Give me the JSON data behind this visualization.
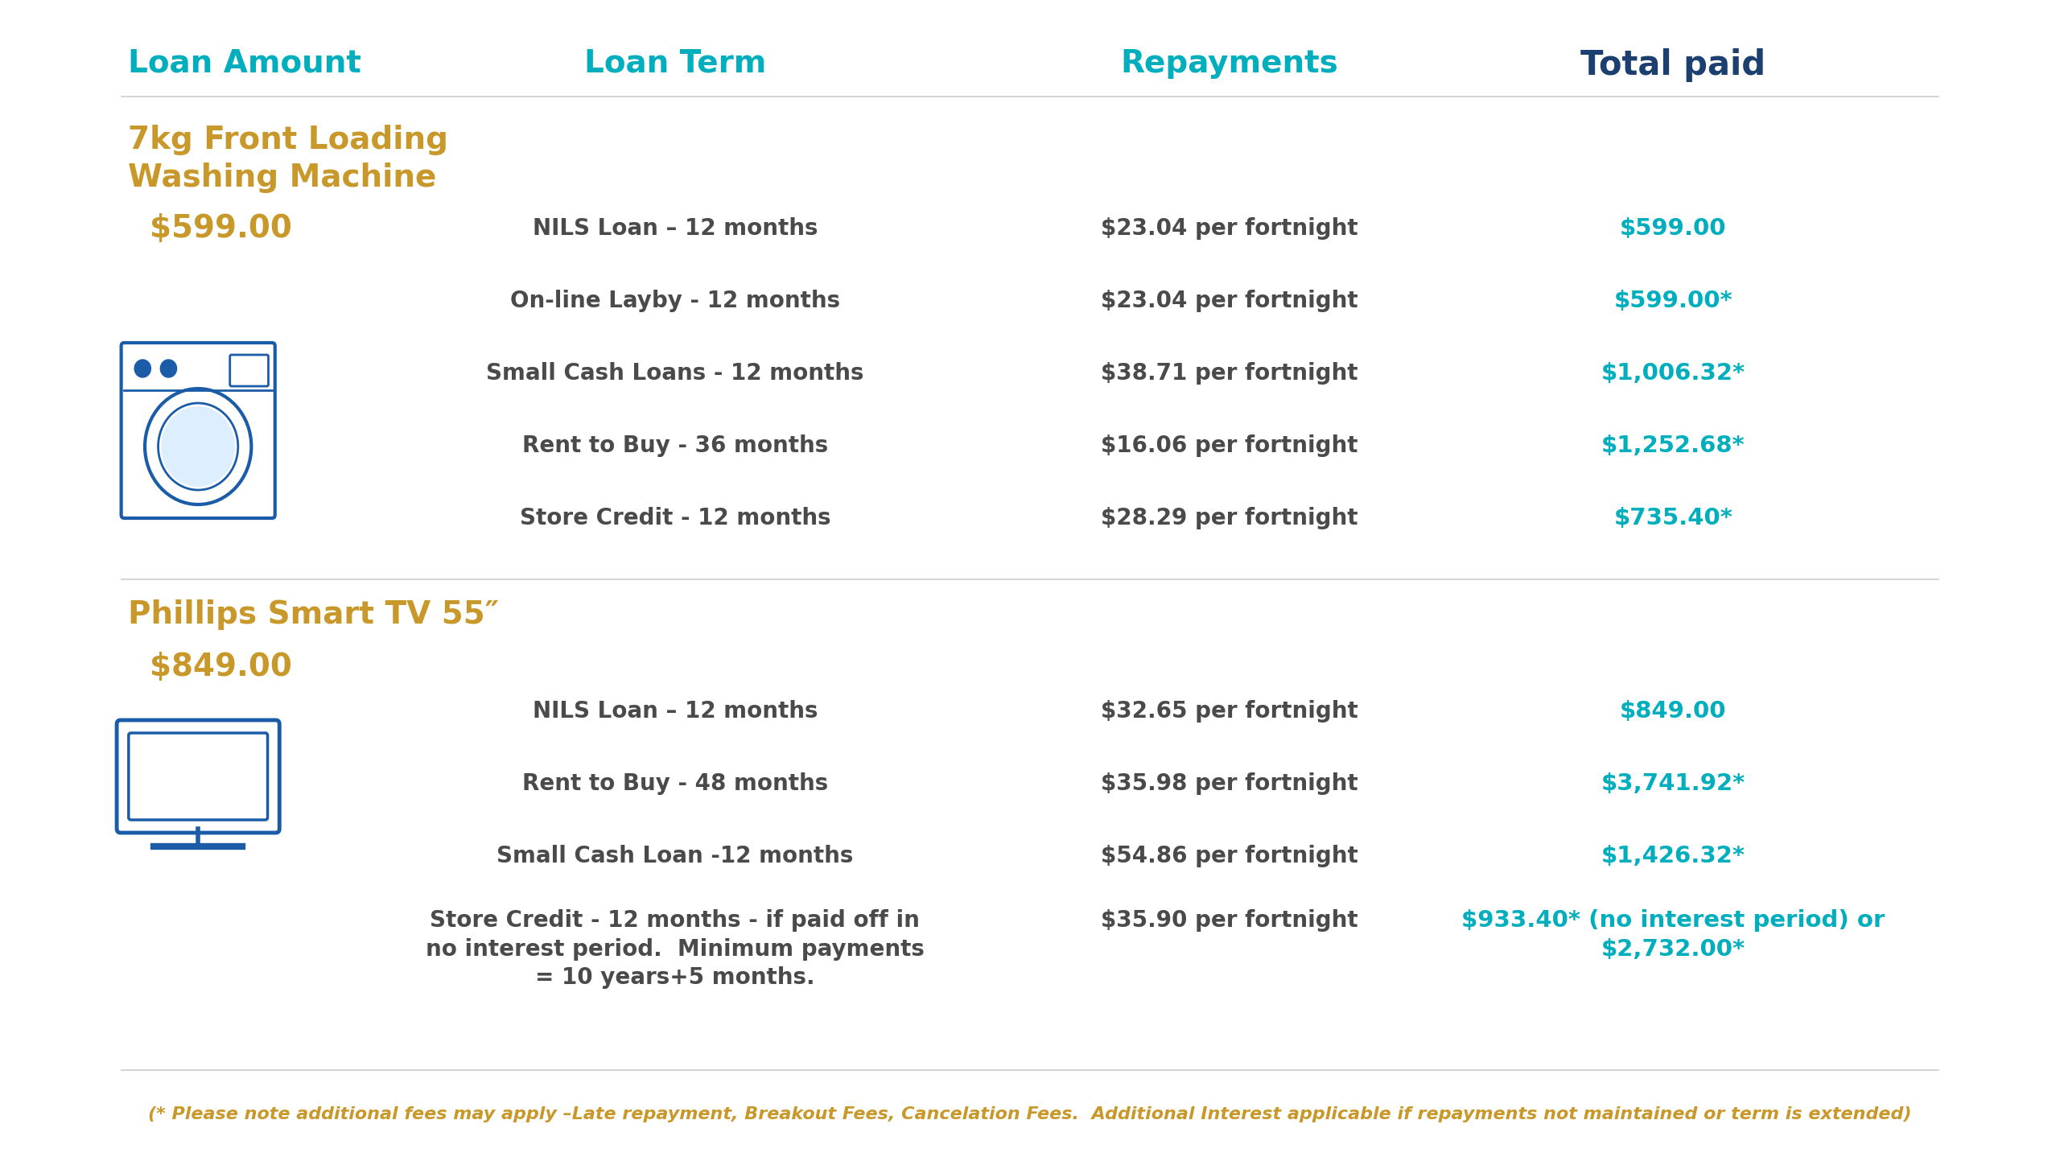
{
  "bg_color": "#ffffff",
  "cyan": "#00AEBD",
  "dark_blue": "#1B3F6E",
  "gold": "#C9982A",
  "dark_text": "#4a4a4a",
  "icon_color": "#1B5CA8",
  "footnote_color": "#C9982A",
  "headers": [
    "Loan Amount",
    "Loan Term",
    "Repayments",
    "Total paid"
  ],
  "product1_name": "7kg Front Loading\nWashing Machine",
  "product1_price": "$599.00",
  "product1_rows": [
    [
      "NILS Loan – 12 months",
      "$23.04 per fortnight",
      "$599.00"
    ],
    [
      "On-line Layby - 12 months",
      "$23.04 per fortnight",
      "$599.00*"
    ],
    [
      "Small Cash Loans - 12 months",
      "$38.71 per fortnight",
      "$1,006.32*"
    ],
    [
      "Rent to Buy - 36 months",
      "$16.06 per fortnight",
      "$1,252.68*"
    ],
    [
      "Store Credit - 12 months",
      "$28.29 per fortnight",
      "$735.40*"
    ]
  ],
  "product2_name": "Phillips Smart TV 55″",
  "product2_price": "$849.00",
  "product2_rows": [
    [
      "NILS Loan – 12 months",
      "$32.65 per fortnight",
      "$849.00"
    ],
    [
      "Rent to Buy - 48 months",
      "$35.98 per fortnight",
      "$3,741.92*"
    ],
    [
      "Small Cash Loan -12 months",
      "$54.86 per fortnight",
      "$1,426.32*"
    ],
    [
      "Store Credit - 12 months - if paid off in\nno interest period.  Minimum payments\n= 10 years+5 months.",
      "$35.90 per fortnight",
      "$933.40* (no interest period) or\n$2,732.00*"
    ]
  ],
  "footnote": "(* Please note additional fees may apply –Late repayment, Breakout Fees, Cancelation Fees.  Additional Interest applicable if repayments not maintained or term is extended)"
}
